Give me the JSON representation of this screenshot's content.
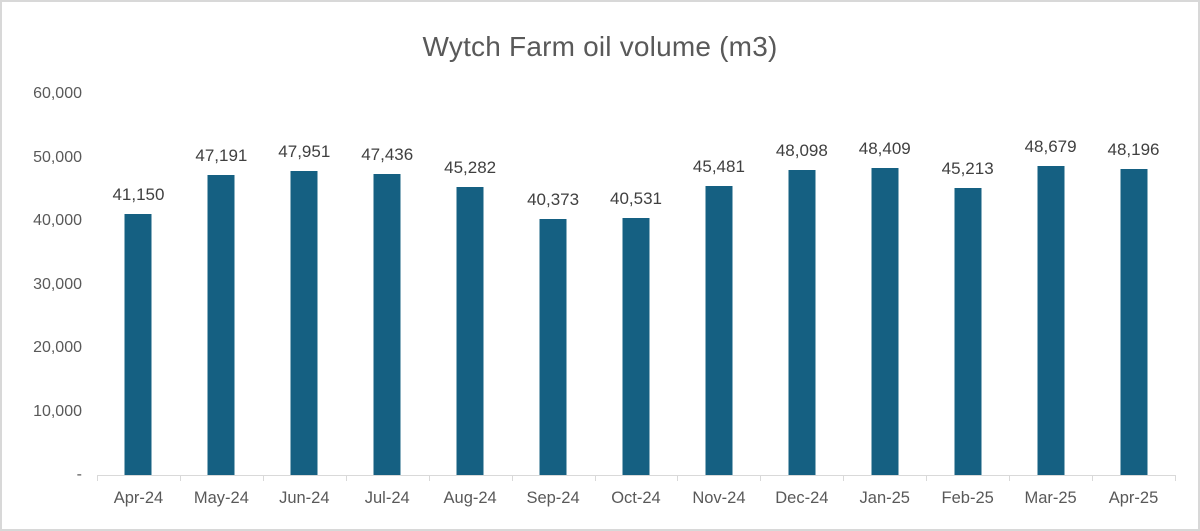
{
  "window": {
    "background": "#FFFFFF",
    "border_color": "#D8D8D8"
  },
  "chart_data": {
    "type": "bar",
    "title": "Wytch Farm oil volume (m3)",
    "xlabel": "",
    "ylabel": "",
    "categories": [
      "Apr-24",
      "May-24",
      "Jun-24",
      "Jul-24",
      "Aug-24",
      "Sep-24",
      "Oct-24",
      "Nov-24",
      "Dec-24",
      "Jan-25",
      "Feb-25",
      "Mar-25",
      "Apr-25"
    ],
    "values": [
      41150,
      47191,
      47951,
      47436,
      45282,
      40373,
      40531,
      45481,
      48098,
      48409,
      45213,
      48679,
      48196
    ],
    "value_labels": [
      "41,150",
      "47,191",
      "47,951",
      "47,436",
      "45,282",
      "40,373",
      "40,531",
      "45,481",
      "48,098",
      "48,409",
      "45,213",
      "48,679",
      "48,196"
    ],
    "ylim": [
      0,
      60000
    ],
    "y_ticks": [
      {
        "value": 60000,
        "label": "60,000"
      },
      {
        "value": 50000,
        "label": "50,000"
      },
      {
        "value": 40000,
        "label": "40,000"
      },
      {
        "value": 30000,
        "label": "30,000"
      },
      {
        "value": 20000,
        "label": "20,000"
      },
      {
        "value": 10000,
        "label": "10,000"
      },
      {
        "value": 0,
        "label": "-"
      }
    ],
    "grid": false,
    "legend": null,
    "colors": {
      "bar": "#156082",
      "title_text": "#595959",
      "axis_text": "#595959",
      "data_label_text": "#404040",
      "axis_line": "#D9D9D9"
    }
  }
}
